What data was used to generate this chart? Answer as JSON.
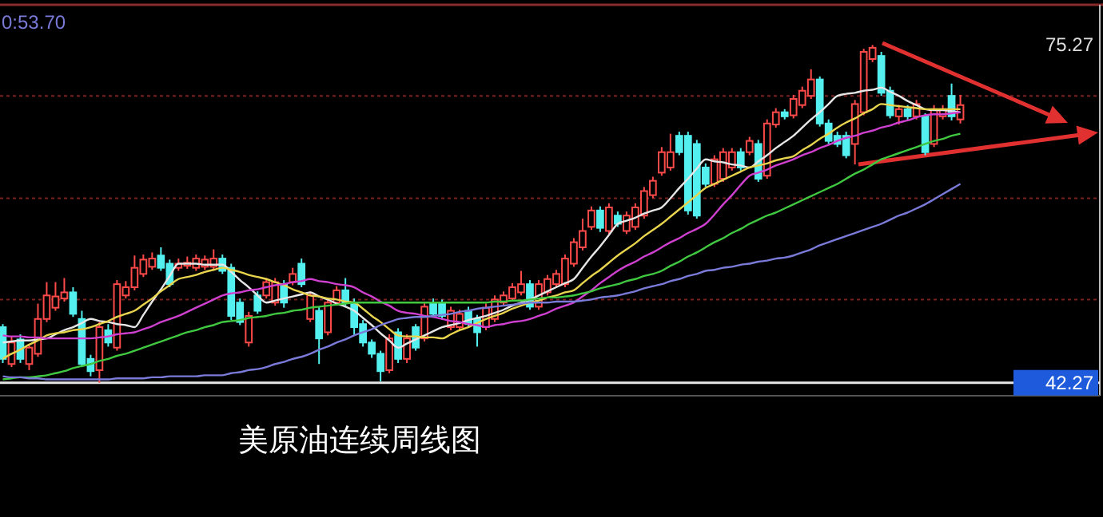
{
  "chart_data": {
    "type": "candlestick",
    "title": "美原油连续周线图",
    "categories": [
      null,
      null,
      null,
      null,
      null,
      null,
      null,
      null,
      null,
      null,
      null,
      null,
      null,
      null,
      null,
      null,
      null,
      null,
      null,
      null,
      null,
      null,
      null,
      null,
      null,
      null,
      null,
      null,
      null,
      null,
      null,
      null,
      null,
      null,
      null,
      null,
      null,
      null,
      null,
      null,
      null,
      null,
      null,
      null,
      null,
      null,
      null,
      null,
      null,
      null,
      null,
      null,
      null,
      null,
      null,
      null,
      null,
      null,
      null,
      null,
      null,
      null,
      null,
      null,
      null,
      null,
      null,
      null,
      null,
      null,
      null,
      null,
      null,
      null,
      null,
      null,
      null,
      null,
      null,
      null,
      null,
      null,
      null,
      null,
      null,
      null,
      null,
      null,
      null,
      null,
      null,
      null,
      null,
      null,
      null,
      null,
      null,
      null,
      null,
      null,
      null,
      null,
      null,
      null,
      null,
      null,
      null,
      null,
      null,
      null
    ],
    "ohlc": [
      [
        47.7,
        48.0,
        44.2,
        44.6
      ],
      [
        44.1,
        46.8,
        43.8,
        46.2
      ],
      [
        46.5,
        47.0,
        44.2,
        44.6
      ],
      [
        44.1,
        46.0,
        43.5,
        45.7
      ],
      [
        45.1,
        50.0,
        44.8,
        48.5
      ],
      [
        48.5,
        52.1,
        48.2,
        50.8
      ],
      [
        49.6,
        52.1,
        49.3,
        50.7
      ],
      [
        50.5,
        52.5,
        50.2,
        51.1
      ],
      [
        51.1,
        51.6,
        48.7,
        49.0
      ],
      [
        48.5,
        49.3,
        43.8,
        44.1
      ],
      [
        44.6,
        45.0,
        42.9,
        43.4
      ],
      [
        43.5,
        48.2,
        42.27,
        47.7
      ],
      [
        47.4,
        48.0,
        45.8,
        46.2
      ],
      [
        45.7,
        52.3,
        45.4,
        51.9
      ],
      [
        50.8,
        52.2,
        50.5,
        51.6
      ],
      [
        51.6,
        54.7,
        51.3,
        53.5
      ],
      [
        52.9,
        54.8,
        52.6,
        54.3
      ],
      [
        53.6,
        55.0,
        53.3,
        54.4
      ],
      [
        54.7,
        55.5,
        53.2,
        53.5
      ],
      [
        53.9,
        54.3,
        51.6,
        51.9
      ],
      [
        53.5,
        54.4,
        53.2,
        53.9
      ],
      [
        53.7,
        54.6,
        53.4,
        54.0
      ],
      [
        53.5,
        54.8,
        53.2,
        54.4
      ],
      [
        53.6,
        54.7,
        53.3,
        54.3
      ],
      [
        53.6,
        55.3,
        53.3,
        54.4
      ],
      [
        54.4,
        54.8,
        52.9,
        53.2
      ],
      [
        53.5,
        53.9,
        48.4,
        48.8
      ],
      [
        50.1,
        50.5,
        47.9,
        48.2
      ],
      [
        46.2,
        49.2,
        45.8,
        48.8
      ],
      [
        50.8,
        51.2,
        49.0,
        49.3
      ],
      [
        50.8,
        52.5,
        50.5,
        52.1
      ],
      [
        50.1,
        52.5,
        49.8,
        52.1
      ],
      [
        51.9,
        52.3,
        49.6,
        50.1
      ],
      [
        52.1,
        53.5,
        51.8,
        52.9
      ],
      [
        53.9,
        54.4,
        51.6,
        51.9
      ],
      [
        48.5,
        51.2,
        48.2,
        50.8
      ],
      [
        49.3,
        49.7,
        44.1,
        46.6
      ],
      [
        47.2,
        50.5,
        46.9,
        50.1
      ],
      [
        50.1,
        51.7,
        49.8,
        51.3
      ],
      [
        51.3,
        52.5,
        49.8,
        50.1
      ],
      [
        50.1,
        50.5,
        46.9,
        47.7
      ],
      [
        48.0,
        48.4,
        45.8,
        46.2
      ],
      [
        46.2,
        46.5,
        44.7,
        45.1
      ],
      [
        45.1,
        45.4,
        42.4,
        43.4
      ],
      [
        43.5,
        47.0,
        43.2,
        46.6
      ],
      [
        47.2,
        47.6,
        44.2,
        44.6
      ],
      [
        44.6,
        47.0,
        44.2,
        46.6
      ],
      [
        47.7,
        48.0,
        45.4,
        45.7
      ],
      [
        46.6,
        50.1,
        46.3,
        49.7
      ],
      [
        50.1,
        50.5,
        48.7,
        49.0
      ],
      [
        50.1,
        50.4,
        48.5,
        48.8
      ],
      [
        47.7,
        49.7,
        47.4,
        49.3
      ],
      [
        47.7,
        49.4,
        47.4,
        49.0
      ],
      [
        49.3,
        49.7,
        47.7,
        48.0
      ],
      [
        48.5,
        48.9,
        45.8,
        47.2
      ],
      [
        47.7,
        50.0,
        47.4,
        49.6
      ],
      [
        48.5,
        50.8,
        48.2,
        50.4
      ],
      [
        50.1,
        51.2,
        49.8,
        50.8
      ],
      [
        50.5,
        52.0,
        50.2,
        51.6
      ],
      [
        51.1,
        53.2,
        50.8,
        51.9
      ],
      [
        51.9,
        52.3,
        49.4,
        49.7
      ],
      [
        49.7,
        52.3,
        49.4,
        51.9
      ],
      [
        51.1,
        52.8,
        50.8,
        52.4
      ],
      [
        51.9,
        53.3,
        51.6,
        52.9
      ],
      [
        51.9,
        54.8,
        51.6,
        54.4
      ],
      [
        53.9,
        56.4,
        53.6,
        56.0
      ],
      [
        55.5,
        58.3,
        55.2,
        57.1
      ],
      [
        57.5,
        59.5,
        57.2,
        59.1
      ],
      [
        59.1,
        59.5,
        57.0,
        57.4
      ],
      [
        57.1,
        59.8,
        56.8,
        59.4
      ],
      [
        58.6,
        59.0,
        57.5,
        57.8
      ],
      [
        57.1,
        59.0,
        56.8,
        58.6
      ],
      [
        57.5,
        59.8,
        57.2,
        59.4
      ],
      [
        58.6,
        61.4,
        58.3,
        61.0
      ],
      [
        60.6,
        62.4,
        60.3,
        62.0
      ],
      [
        62.8,
        65.3,
        62.5,
        64.8
      ],
      [
        63.3,
        66.6,
        63.0,
        64.8
      ],
      [
        66.4,
        66.8,
        64.5,
        64.8
      ],
      [
        66.4,
        66.8,
        58.7,
        59.1
      ],
      [
        65.6,
        66.0,
        58.3,
        58.6
      ],
      [
        63.3,
        63.7,
        61.4,
        61.7
      ],
      [
        61.7,
        64.5,
        61.4,
        64.1
      ],
      [
        62.2,
        65.2,
        61.9,
        64.8
      ],
      [
        63.3,
        65.2,
        63.0,
        64.8
      ],
      [
        64.8,
        65.2,
        63.0,
        63.3
      ],
      [
        64.8,
        66.3,
        64.5,
        65.9
      ],
      [
        65.6,
        66.0,
        61.9,
        62.2
      ],
      [
        62.5,
        68.0,
        62.2,
        67.6
      ],
      [
        67.5,
        69.1,
        67.2,
        68.7
      ],
      [
        68.7,
        69.0,
        68.0,
        68.3
      ],
      [
        68.4,
        70.4,
        68.1,
        70.0
      ],
      [
        69.4,
        71.2,
        69.1,
        70.8
      ],
      [
        70.3,
        72.9,
        70.0,
        71.9
      ],
      [
        71.9,
        72.2,
        67.3,
        67.6
      ],
      [
        67.6,
        68.0,
        65.6,
        65.9
      ],
      [
        66.4,
        66.8,
        65.3,
        65.6
      ],
      [
        66.4,
        66.8,
        64.2,
        64.5
      ],
      [
        65.6,
        69.9,
        63.6,
        69.5
      ],
      [
        68.7,
        74.9,
        68.4,
        74.6
      ],
      [
        73.9,
        75.27,
        73.6,
        75.0
      ],
      [
        74.2,
        74.6,
        70.3,
        70.6
      ],
      [
        70.8,
        71.2,
        68.1,
        68.4
      ],
      [
        68.3,
        69.4,
        67.5,
        69.0
      ],
      [
        69.0,
        69.4,
        67.9,
        68.3
      ],
      [
        68.3,
        69.9,
        68.0,
        69.5
      ],
      [
        68.3,
        68.6,
        64.5,
        64.8
      ],
      [
        65.6,
        69.4,
        65.3,
        69.0
      ],
      [
        68.3,
        69.4,
        68.0,
        69.0
      ],
      [
        70.3,
        71.5,
        67.9,
        68.3
      ],
      [
        68.0,
        70.4,
        67.6,
        69.4
      ]
    ],
    "series": [
      {
        "type": "line",
        "color": "#e6e6e6",
        "values": [
          46.2,
          46.3,
          46.4,
          46.4,
          46.5,
          46.6,
          47.0,
          47.4,
          47.7,
          48.1,
          48.5,
          48.3,
          48.2,
          48.0,
          47.9,
          47.7,
          48.9,
          50.2,
          51.4,
          52.7,
          53.9,
          53.9,
          53.9,
          53.8,
          53.8,
          53.8,
          53.1,
          52.3,
          51.6,
          50.8,
          50.1,
          50.3,
          50.5,
          50.7,
          50.9,
          51.1,
          50.7,
          50.4,
          50.0,
          49.7,
          49.3,
          48.6,
          47.9,
          47.1,
          46.4,
          45.7,
          46.1,
          46.5,
          46.9,
          47.3,
          47.7,
          47.9,
          48.1,
          48.4,
          48.6,
          48.8,
          49.1,
          49.4,
          49.8,
          50.1,
          50.4,
          50.8,
          51.2,
          51.6,
          52.0,
          52.4,
          53.5,
          54.6,
          55.6,
          56.7,
          57.8,
          58.1,
          58.4,
          58.8,
          59.1,
          59.4,
          60.3,
          61.3,
          62.2,
          63.2,
          64.1,
          63.9,
          63.8,
          63.6,
          63.5,
          63.3,
          63.9,
          64.5,
          65.2,
          65.8,
          66.4,
          67.2,
          68.0,
          68.7,
          69.5,
          70.3,
          70.5,
          70.6,
          70.8,
          70.9,
          71.1,
          70.7,
          70.3,
          69.8,
          69.4,
          69.0,
          68.9,
          68.9,
          68.8,
          68.7
        ]
      },
      {
        "type": "line",
        "color": "#e8d44d",
        "values": [
          44.6,
          45.1,
          45.5,
          46.0,
          46.4,
          46.9,
          47.1,
          47.2,
          47.4,
          47.5,
          47.7,
          48.0,
          48.3,
          48.7,
          49.0,
          49.3,
          49.9,
          50.5,
          51.2,
          51.8,
          52.4,
          52.6,
          52.8,
          53.1,
          53.3,
          53.5,
          53.3,
          53.1,
          52.8,
          52.6,
          52.4,
          52.1,
          51.8,
          51.4,
          51.1,
          50.8,
          50.7,
          50.5,
          50.4,
          50.2,
          50.1,
          49.5,
          48.8,
          48.2,
          47.5,
          46.9,
          46.8,
          46.8,
          46.7,
          46.7,
          46.6,
          47.0,
          47.4,
          47.7,
          48.1,
          48.5,
          48.8,
          49.1,
          49.5,
          49.8,
          50.1,
          50.3,
          50.6,
          50.8,
          51.1,
          51.3,
          52.0,
          52.7,
          53.3,
          54.0,
          54.7,
          55.3,
          55.9,
          56.6,
          57.2,
          57.8,
          58.5,
          59.2,
          59.9,
          60.6,
          61.3,
          61.7,
          62.1,
          62.5,
          62.9,
          63.3,
          63.5,
          63.7,
          64.0,
          64.2,
          64.4,
          65.0,
          65.5,
          66.1,
          66.6,
          67.2,
          67.7,
          68.1,
          68.6,
          69.0,
          69.5,
          69.4,
          69.3,
          69.2,
          69.1,
          69.0,
          69.0,
          69.0,
          69.0,
          69.0
        ]
      },
      {
        "type": "line",
        "color": "#d040d0",
        "values": [
          46.9,
          46.8,
          46.8,
          46.7,
          46.7,
          46.6,
          46.6,
          46.6,
          46.6,
          46.6,
          46.6,
          46.7,
          46.8,
          47.0,
          47.1,
          47.2,
          47.5,
          47.8,
          48.2,
          48.5,
          48.8,
          49.2,
          49.6,
          50.0,
          50.4,
          50.8,
          51.0,
          51.1,
          51.3,
          51.4,
          51.6,
          51.8,
          51.9,
          52.1,
          52.2,
          52.4,
          52.2,
          52.1,
          51.9,
          51.8,
          51.6,
          51.1,
          50.7,
          50.2,
          49.8,
          49.3,
          49.1,
          49.0,
          48.8,
          48.7,
          48.5,
          48.3,
          48.2,
          48.0,
          47.9,
          47.7,
          47.9,
          48.0,
          48.2,
          48.3,
          48.5,
          48.8,
          49.1,
          49.5,
          49.8,
          50.1,
          50.7,
          51.3,
          52.0,
          52.6,
          53.2,
          53.7,
          54.1,
          54.6,
          55.0,
          55.5,
          56.0,
          56.4,
          56.9,
          57.3,
          57.8,
          58.7,
          59.7,
          60.6,
          61.6,
          62.5,
          62.8,
          63.1,
          63.5,
          63.8,
          64.1,
          64.5,
          64.8,
          65.2,
          65.5,
          65.9,
          66.2,
          66.4,
          66.7,
          66.9,
          67.2,
          67.4,
          67.7,
          67.9,
          68.2,
          68.4,
          68.5,
          68.5,
          68.6,
          68.7
        ]
      },
      {
        "type": "line",
        "color": "#40c840",
        "values": [
          42.6,
          42.7,
          42.8,
          42.8,
          42.9,
          43.0,
          43.2,
          43.4,
          43.7,
          43.9,
          44.1,
          44.4,
          44.6,
          44.9,
          45.1,
          45.4,
          45.7,
          46.0,
          46.3,
          46.6,
          46.9,
          47.2,
          47.4,
          47.7,
          47.9,
          48.2,
          48.3,
          48.4,
          48.6,
          48.7,
          48.8,
          49.0,
          49.1,
          49.3,
          49.4,
          49.6,
          49.7,
          49.8,
          49.9,
          50.0,
          50.1,
          50.1,
          50.1,
          50.1,
          50.1,
          50.1,
          50.1,
          50.1,
          50.1,
          50.1,
          50.1,
          50.1,
          50.1,
          50.1,
          50.1,
          50.1,
          50.2,
          50.2,
          50.3,
          50.3,
          50.4,
          50.5,
          50.6,
          50.6,
          50.7,
          50.8,
          51.0,
          51.2,
          51.5,
          51.7,
          51.9,
          52.2,
          52.4,
          52.7,
          52.9,
          53.2,
          53.7,
          54.1,
          54.6,
          55.0,
          55.5,
          56.0,
          56.4,
          56.9,
          57.3,
          57.8,
          58.2,
          58.6,
          58.9,
          59.3,
          59.7,
          60.1,
          60.5,
          60.9,
          61.3,
          61.7,
          62.2,
          62.7,
          63.1,
          63.6,
          64.1,
          64.4,
          64.7,
          65.0,
          65.3,
          65.6,
          65.9,
          66.1,
          66.4,
          66.6
        ]
      },
      {
        "type": "line",
        "color": "#7a7ad8",
        "values": [
          42.9,
          42.8,
          42.8,
          42.7,
          42.7,
          42.6,
          42.6,
          42.6,
          42.6,
          42.6,
          42.6,
          42.6,
          42.6,
          42.7,
          42.7,
          42.7,
          42.7,
          42.8,
          42.8,
          42.9,
          42.9,
          42.9,
          42.9,
          43.0,
          43.0,
          43.0,
          43.2,
          43.3,
          43.5,
          43.6,
          43.8,
          44.1,
          44.3,
          44.6,
          44.8,
          45.1,
          45.5,
          45.8,
          46.2,
          46.5,
          46.9,
          47.2,
          47.5,
          47.9,
          48.2,
          48.5,
          48.6,
          48.7,
          48.7,
          48.8,
          48.9,
          49.0,
          49.2,
          49.3,
          49.5,
          49.6,
          49.7,
          49.8,
          49.9,
          50.0,
          50.1,
          50.1,
          50.1,
          50.2,
          50.2,
          50.2,
          50.3,
          50.4,
          50.6,
          50.7,
          50.8,
          51.0,
          51.2,
          51.5,
          51.7,
          51.9,
          52.2,
          52.4,
          52.7,
          52.9,
          53.2,
          53.3,
          53.5,
          53.6,
          53.8,
          53.9,
          54.1,
          54.2,
          54.4,
          54.5,
          54.7,
          55.0,
          55.3,
          55.7,
          56.0,
          56.3,
          56.6,
          56.9,
          57.2,
          57.5,
          57.8,
          58.2,
          58.6,
          58.9,
          59.3,
          59.7,
          60.2,
          60.7,
          61.2,
          61.7
        ]
      }
    ],
    "yticks": [
      {
        "value": 42.27,
        "label": "42.27"
      },
      {
        "value": 50.4,
        "label": null
      },
      {
        "value": 60.3,
        "label": null
      },
      {
        "value": 70.3,
        "label": null
      },
      {
        "value": 75.27,
        "label": "75.27"
      }
    ],
    "ylim": [
      41.0,
      79.2
    ],
    "grid": "y",
    "ref_lines": [
      {
        "axis": "y",
        "value": 42.27,
        "color": "#e6e6e6"
      }
    ],
    "annotations": [
      "0:53.70"
    ]
  }
}
